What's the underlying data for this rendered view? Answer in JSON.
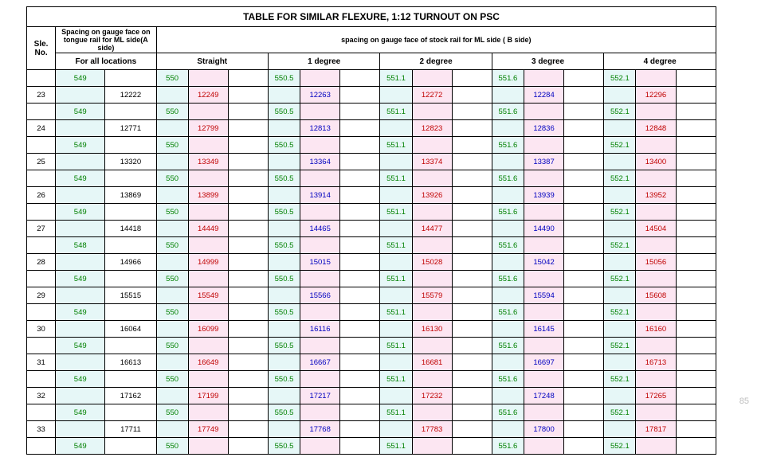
{
  "title": "TABLE FOR SIMILAR FLEXURE, 1:12 TURNOUT ON PSC",
  "header_a": "Spacing on gauge face on tongue rail for ML side(A side)",
  "header_b": "spacing on gauge face of stock rail for ML side ( B side)",
  "sle_label": "Sle. No.",
  "for_all": "For all locations",
  "degs": [
    "Straight",
    "1 degree",
    "2 degree",
    "3 degree",
    "4 degree"
  ],
  "rows": [
    {
      "sle": "",
      "a1": "549",
      "a2": "",
      "d": [
        [
          "550",
          "",
          "550.5"
        ],
        [
          "",
          "",
          ""
        ],
        [
          "551.1",
          "",
          "551.6"
        ],
        [
          "",
          "",
          ""
        ],
        [
          "552.1",
          "",
          ""
        ]
      ],
      "v": [
        "",
        "",
        "",
        "",
        ""
      ],
      "g": [
        "550",
        "550.5",
        "551.1",
        "551.6",
        "552.1"
      ]
    },
    {
      "sle": "23",
      "a1": "",
      "a2": "12222",
      "v": [
        "12249",
        "12263",
        "12272",
        "12284",
        "12296"
      ]
    },
    {
      "sle": "",
      "a1": "549",
      "a2": "",
      "g": [
        "550",
        "550.5",
        "551.1",
        "551.6",
        "552.1"
      ]
    },
    {
      "sle": "24",
      "a1": "",
      "a2": "12771",
      "v": [
        "12799",
        "12813",
        "12823",
        "12836",
        "12848"
      ]
    },
    {
      "sle": "",
      "a1": "549",
      "a2": "",
      "g": [
        "550",
        "550.5",
        "551.1",
        "551.6",
        "552.1"
      ]
    },
    {
      "sle": "25",
      "a1": "",
      "a2": "13320",
      "v": [
        "13349",
        "13364",
        "13374",
        "13387",
        "13400"
      ]
    },
    {
      "sle": "",
      "a1": "549",
      "a2": "",
      "g": [
        "550",
        "550.5",
        "551.1",
        "551.6",
        "552.1"
      ]
    },
    {
      "sle": "26",
      "a1": "",
      "a2": "13869",
      "v": [
        "13899",
        "13914",
        "13926",
        "13939",
        "13952"
      ]
    },
    {
      "sle": "",
      "a1": "549",
      "a2": "",
      "g": [
        "550",
        "550.5",
        "551.1",
        "551.6",
        "552.1"
      ]
    },
    {
      "sle": "27",
      "a1": "",
      "a2": "14418",
      "v": [
        "14449",
        "14465",
        "14477",
        "14490",
        "14504"
      ]
    },
    {
      "sle": "",
      "a1": "548",
      "a2": "",
      "g": [
        "550",
        "550.5",
        "551.1",
        "551.6",
        "552.1"
      ]
    },
    {
      "sle": "28",
      "a1": "",
      "a2": "14966",
      "v": [
        "14999",
        "15015",
        "15028",
        "15042",
        "15056"
      ]
    },
    {
      "sle": "",
      "a1": "549",
      "a2": "",
      "g": [
        "550",
        "550.5",
        "551.1",
        "551.6",
        "552.1"
      ]
    },
    {
      "sle": "29",
      "a1": "",
      "a2": "15515",
      "v": [
        "15549",
        "15566",
        "15579",
        "15594",
        "15608"
      ]
    },
    {
      "sle": "",
      "a1": "549",
      "a2": "",
      "g": [
        "550",
        "550.5",
        "551.1",
        "551.6",
        "552.1"
      ]
    },
    {
      "sle": "30",
      "a1": "",
      "a2": "16064",
      "v": [
        "16099",
        "16116",
        "16130",
        "16145",
        "16160"
      ]
    },
    {
      "sle": "",
      "a1": "549",
      "a2": "",
      "g": [
        "550",
        "550.5",
        "551.1",
        "551.6",
        "552.1"
      ]
    },
    {
      "sle": "31",
      "a1": "",
      "a2": "16613",
      "v": [
        "16649",
        "16667",
        "16681",
        "16697",
        "16713"
      ]
    },
    {
      "sle": "",
      "a1": "549",
      "a2": "",
      "g": [
        "550",
        "550.5",
        "551.1",
        "551.6",
        "552.1"
      ]
    },
    {
      "sle": "32",
      "a1": "",
      "a2": "17162",
      "v": [
        "17199",
        "17217",
        "17232",
        "17248",
        "17265"
      ]
    },
    {
      "sle": "",
      "a1": "549",
      "a2": "",
      "g": [
        "550",
        "550.5",
        "551.1",
        "551.6",
        "552.1"
      ]
    },
    {
      "sle": "33",
      "a1": "",
      "a2": "17711",
      "v": [
        "17749",
        "17768",
        "17783",
        "17800",
        "17817"
      ]
    },
    {
      "sle": "",
      "a1": "549",
      "a2": "",
      "g": [
        "550",
        "550.5",
        "551.1",
        "551.6",
        "552.1"
      ]
    }
  ],
  "page_number": "85",
  "colors": {
    "cyan": "#e6f7f7",
    "pink": "#fce6f2",
    "green_text": "#008000",
    "red_text": "#c00000",
    "blue_text": "#0000c0"
  }
}
